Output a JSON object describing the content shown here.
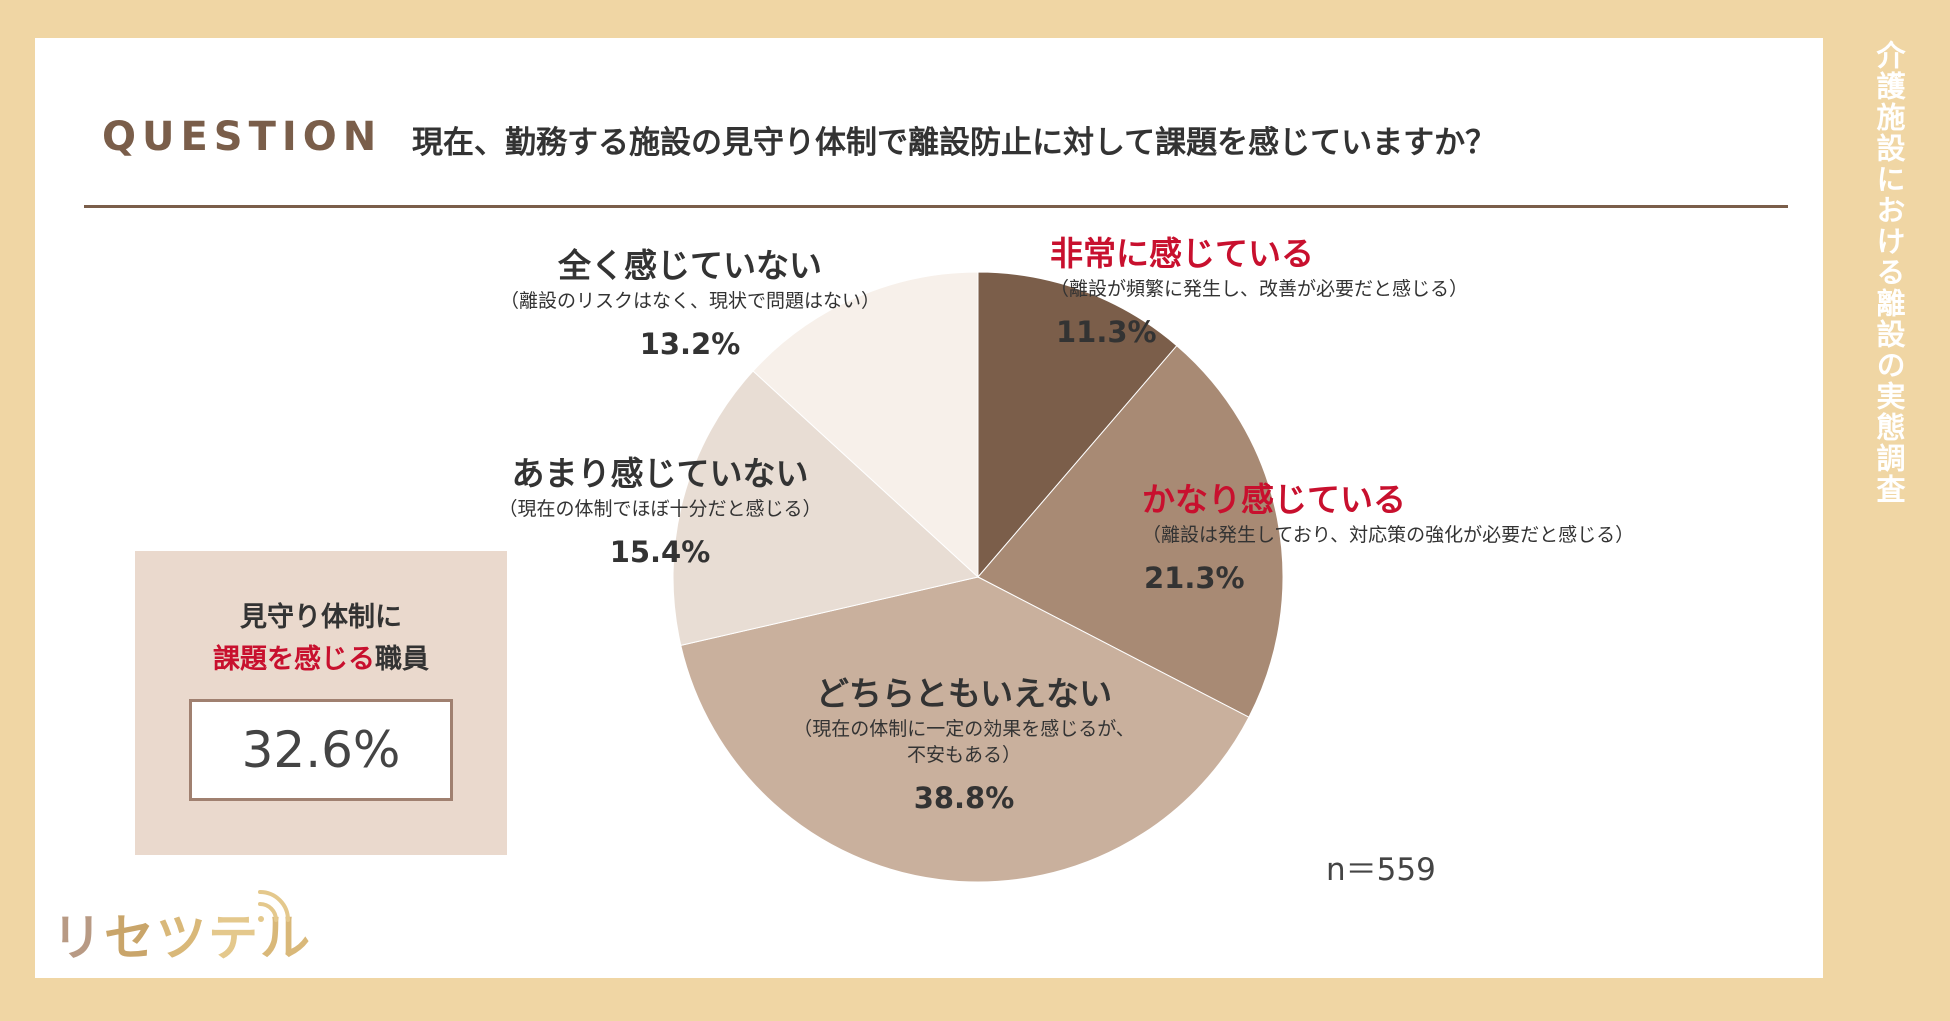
{
  "side_title": "介護施設における離設の実態調査",
  "header": {
    "question_label": "QUESTION",
    "question_text": "現在、勤務する施設の見守り体制で離設防止に対して課題を感じていますか？"
  },
  "chart_data": {
    "type": "pie",
    "title": "",
    "start_angle_deg": 0,
    "direction": "clockwise",
    "slices": [
      {
        "label": "非常に感じている",
        "note": "（離設が頻繁に発生し、改善が必要だと感じる）",
        "value": 11.3,
        "value_label": "11.3%",
        "color": "#7b5e4a",
        "highlight": true
      },
      {
        "label": "かなり感じている",
        "note": "（離設は発生しており、対応策の強化が必要だと感じる）",
        "value": 21.3,
        "value_label": "21.3%",
        "color": "#a88a74",
        "highlight": true
      },
      {
        "label": "どちらともいえない",
        "note": "（現在の体制に一定の効果を感じるが、",
        "note2": "不安もある）",
        "value": 38.8,
        "value_label": "38.8%",
        "color": "#c9b09d",
        "highlight": false
      },
      {
        "label": "あまり感じていない",
        "note": "（現在の体制でほぼ十分だと感じる）",
        "value": 15.4,
        "value_label": "15.4%",
        "color": "#e8ddd4",
        "highlight": false
      },
      {
        "label": "全く感じていない",
        "note": "（離設のリスクはなく、現状で問題はない）",
        "value": 13.2,
        "value_label": "13.2%",
        "color": "#f7f0ea",
        "highlight": false
      }
    ],
    "sample_size_label": "n＝559"
  },
  "summary": {
    "line1": "見守り体制に",
    "line2_red": "課題を感じる",
    "line2_rest": "職員",
    "value": "32.6%"
  },
  "logo": {
    "chars": [
      "リ",
      "セ",
      "ツ",
      "テ",
      "ル"
    ],
    "colors": [
      "#b89a84",
      "#c9a56a",
      "#d9b879",
      "#e4c88c",
      "#d9b879"
    ]
  }
}
